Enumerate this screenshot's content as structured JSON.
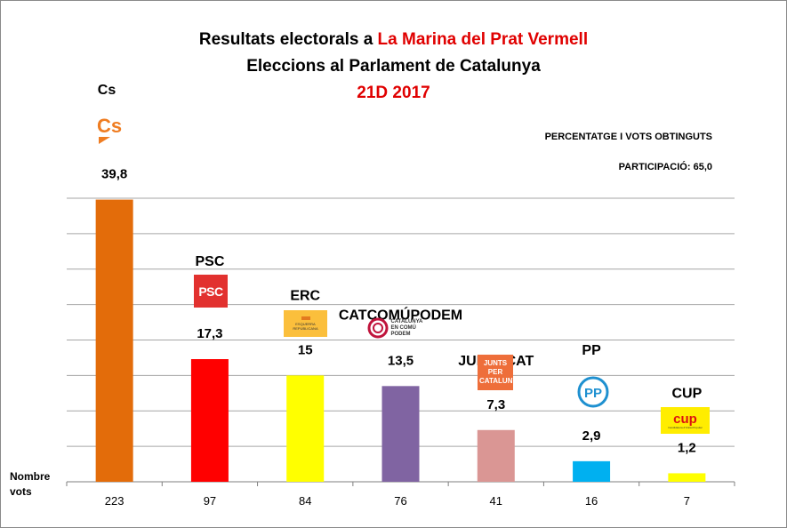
{
  "chart_data": {
    "type": "bar",
    "title": {
      "prefix": "Resultats electorals a ",
      "place": "La Marina del Prat Vermell",
      "line2": "Eleccions al Parlament de Catalunya",
      "line3": "21D 2017"
    },
    "notes": [
      "PERCENTATGE I VOTS OBTINGUTS",
      "PARTICIPACIÓ: 65,0"
    ],
    "xlabel": "Nombre vots",
    "ylim": [
      0,
      42
    ],
    "grid": true,
    "categories": [
      "Cs",
      "PSC",
      "ERC",
      "CATCOMÚPODEM",
      "JUNSXCAT",
      "PP",
      "CUP"
    ],
    "values": [
      39.8,
      17.3,
      15,
      13.5,
      7.3,
      2.9,
      1.2
    ],
    "value_labels": [
      "39,8",
      "17,3",
      "15",
      "13,5",
      "7,3",
      "2,9",
      "1,2"
    ],
    "votes": [
      "223",
      "97",
      "84",
      "76",
      "41",
      "16",
      "7"
    ],
    "colors": [
      "#e36c0a",
      "#ff0000",
      "#ffff00",
      "#8064a2",
      "#da9694",
      "#00b0f0",
      "#ffff00"
    ]
  },
  "logos": [
    {
      "name": "cs-logo",
      "text": "Cs"
    },
    {
      "name": "psc-logo",
      "text": "PSC"
    },
    {
      "name": "erc-logo",
      "text": "ESQUERRA REPUBLICANA"
    },
    {
      "name": "comu-logo",
      "text": "CATALUNYA EN COMÚ PODEM"
    },
    {
      "name": "junts-logo",
      "text": "JUNTS PER CATALUNYA"
    },
    {
      "name": "pp-logo",
      "text": "PP"
    },
    {
      "name": "cup-logo",
      "text": "cup",
      "subtext": "Candidatura d'Unitat Popular"
    }
  ]
}
